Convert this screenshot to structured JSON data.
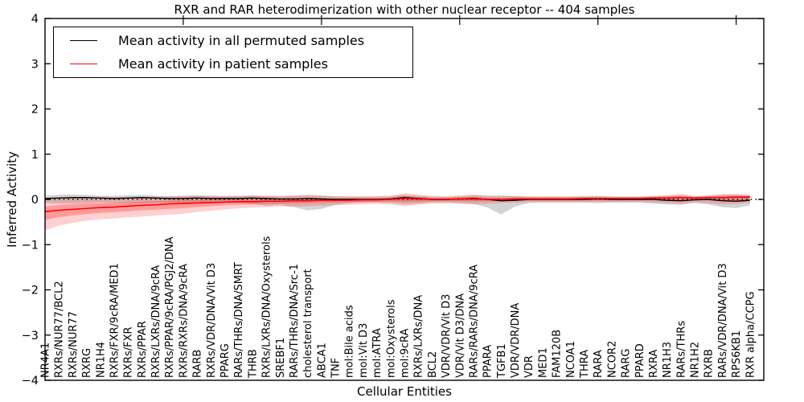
{
  "title": "RXR and RAR heterodimerization with other nuclear receptor -- 404 samples",
  "legend": {
    "items": [
      {
        "label": "Mean activity in all permuted samples",
        "color": "#000000"
      },
      {
        "label": "Mean activity in patient samples",
        "color": "#ff0000"
      }
    ]
  },
  "chart_data": {
    "type": "line",
    "title": "RXR and RAR heterodimerization with other nuclear receptor -- 404 samples",
    "xlabel": "Cellular Entities",
    "ylabel": "Inferred Activity",
    "ylim": [
      -4,
      4
    ],
    "xlim": [
      0,
      52
    ],
    "grid": false,
    "legend_position": "upper left",
    "ytick_values": [
      4,
      3,
      2,
      1,
      0,
      -1,
      -2,
      -3,
      -4
    ],
    "ytick_labels": [
      "4",
      "3",
      "2",
      "1",
      "0",
      "−1",
      "−2",
      "−3",
      "−4"
    ],
    "xticks_top": [
      10,
      20,
      30,
      40,
      50
    ],
    "zero_line": {
      "value": 0,
      "style": "dotted",
      "color": "#000000"
    },
    "categories": [
      "NR4A1",
      "RXRs/NUR77/BCL2",
      "RXRs/NUR77",
      "RXRG",
      "NR1H4",
      "RXRs/FXR/9cRA/MED1",
      "RXRs/FXR",
      "RXRs/PPAR",
      "RXRs/LXRs/DNA/9cRA",
      "RXRs/PPAR/9cRA/PGJ2/DNA",
      "RXRs/RXRs/DNA/9cRA",
      "RARB",
      "RXRs/VDR/DNA/Vit D3",
      "PPARG",
      "RARs/THRs/DNA/SMRT",
      "THRB",
      "RXRs/LXRs/DNA/Oxysterols",
      "SREBF1",
      "RARs/THRs/DNA/Src-1",
      "cholesterol transport",
      "ABCA1",
      "TNF",
      "mol:Bile acids",
      "mol:Vit D3",
      "mol:ATRA",
      "mol:Oxysterols",
      "mol:9cRA",
      "RXRs/LXRs/DNA",
      "BCL2",
      "VDR/VDR/Vit D3",
      "VDR/Vit D3/DNA",
      "RARs/RARs/DNA/9cRA",
      "PPARA",
      "TGFB1",
      "VDR/VDR/DNA",
      "VDR",
      "MED1",
      "FAM120B",
      "NCOA1",
      "THRA",
      "RARA",
      "NCOR2",
      "RARG",
      "PPARD",
      "RXRA",
      "NR1H3",
      "RARs/THRs",
      "NR1H2",
      "RXRB",
      "RARs/VDR/DNA/Vit D3",
      "RPS6KB1",
      "RXR alpha/CCPG"
    ],
    "series": [
      {
        "name": "Mean activity in all permuted samples",
        "color": "#000000",
        "band_color": "rgba(140,140,140,0.38)",
        "values": [
          0.02,
          0.03,
          0.04,
          0.04,
          0.03,
          0.02,
          0.03,
          0.04,
          0.03,
          0.02,
          0.02,
          0.03,
          0.02,
          0.02,
          0.02,
          0.03,
          0.02,
          0.01,
          0.01,
          0.02,
          0.01,
          0.0,
          0.0,
          0.0,
          0.0,
          0.01,
          0.04,
          0.02,
          0.0,
          0.0,
          0.01,
          0.02,
          0.0,
          -0.03,
          -0.02,
          0.0,
          0.0,
          0.0,
          0.0,
          0.0,
          0.01,
          0.0,
          0.0,
          0.0,
          0.0,
          -0.02,
          -0.03,
          -0.01,
          0.0,
          -0.03,
          -0.04,
          -0.02
        ],
        "band_upper": [
          0.08,
          0.1,
          0.11,
          0.1,
          0.08,
          0.08,
          0.09,
          0.1,
          0.08,
          0.07,
          0.08,
          0.09,
          0.08,
          0.07,
          0.08,
          0.09,
          0.08,
          0.07,
          0.08,
          0.1,
          0.09,
          0.07,
          0.06,
          0.06,
          0.06,
          0.07,
          0.1,
          0.08,
          0.06,
          0.06,
          0.07,
          0.09,
          0.08,
          0.09,
          0.07,
          0.06,
          0.06,
          0.06,
          0.06,
          0.06,
          0.07,
          0.06,
          0.06,
          0.06,
          0.07,
          0.08,
          0.08,
          0.06,
          0.08,
          0.1,
          0.1,
          0.09
        ],
        "band_lower": [
          -0.08,
          -0.09,
          -0.09,
          -0.08,
          -0.07,
          -0.07,
          -0.08,
          -0.08,
          -0.07,
          -0.07,
          -0.07,
          -0.08,
          -0.07,
          -0.07,
          -0.08,
          -0.1,
          -0.14,
          -0.12,
          -0.17,
          -0.24,
          -0.21,
          -0.12,
          -0.08,
          -0.07,
          -0.07,
          -0.08,
          -0.11,
          -0.09,
          -0.07,
          -0.07,
          -0.08,
          -0.1,
          -0.18,
          -0.33,
          -0.16,
          -0.08,
          -0.07,
          -0.07,
          -0.07,
          -0.07,
          -0.08,
          -0.07,
          -0.07,
          -0.07,
          -0.09,
          -0.11,
          -0.12,
          -0.08,
          -0.11,
          -0.17,
          -0.19,
          -0.13
        ]
      },
      {
        "name": "Mean activity in patient samples",
        "color": "#ff0000",
        "band_color": "rgba(255,40,40,0.22)",
        "band_inner_color": "rgba(255,30,30,0.30)",
        "band_inner_fraction": 0.45,
        "values": [
          -0.27,
          -0.24,
          -0.22,
          -0.2,
          -0.18,
          -0.17,
          -0.15,
          -0.13,
          -0.12,
          -0.1,
          -0.09,
          -0.08,
          -0.07,
          -0.06,
          -0.05,
          -0.05,
          -0.04,
          -0.04,
          -0.03,
          -0.03,
          -0.02,
          -0.02,
          -0.02,
          -0.01,
          -0.01,
          0.0,
          0.02,
          0.01,
          0.0,
          0.0,
          0.01,
          0.01,
          0.0,
          0.0,
          0.01,
          0.01,
          0.01,
          0.01,
          0.01,
          0.02,
          0.02,
          0.02,
          0.02,
          0.02,
          0.03,
          0.03,
          0.04,
          0.03,
          0.04,
          0.04,
          0.05,
          0.05
        ],
        "band_upper": [
          -0.02,
          0.02,
          0.03,
          0.04,
          0.04,
          0.05,
          0.05,
          0.06,
          0.06,
          0.07,
          0.08,
          0.08,
          0.08,
          0.08,
          0.08,
          0.08,
          0.08,
          0.08,
          0.09,
          0.09,
          0.08,
          0.07,
          0.07,
          0.07,
          0.07,
          0.08,
          0.14,
          0.11,
          0.08,
          0.07,
          0.09,
          0.11,
          0.08,
          0.07,
          0.08,
          0.07,
          0.07,
          0.07,
          0.07,
          0.08,
          0.08,
          0.07,
          0.07,
          0.07,
          0.08,
          0.09,
          0.13,
          0.08,
          0.09,
          0.12,
          0.12,
          0.11
        ],
        "band_lower": [
          -0.68,
          -0.58,
          -0.52,
          -0.47,
          -0.44,
          -0.42,
          -0.4,
          -0.38,
          -0.36,
          -0.34,
          -0.32,
          -0.28,
          -0.25,
          -0.22,
          -0.2,
          -0.18,
          -0.17,
          -0.16,
          -0.16,
          -0.15,
          -0.14,
          -0.13,
          -0.12,
          -0.11,
          -0.1,
          -0.11,
          -0.15,
          -0.12,
          -0.09,
          -0.08,
          -0.1,
          -0.11,
          -0.09,
          -0.08,
          -0.07,
          -0.06,
          -0.06,
          -0.06,
          -0.06,
          -0.06,
          -0.06,
          -0.06,
          -0.06,
          -0.06,
          -0.07,
          -0.08,
          -0.1,
          -0.06,
          -0.08,
          -0.11,
          -0.1,
          -0.07
        ]
      }
    ]
  }
}
